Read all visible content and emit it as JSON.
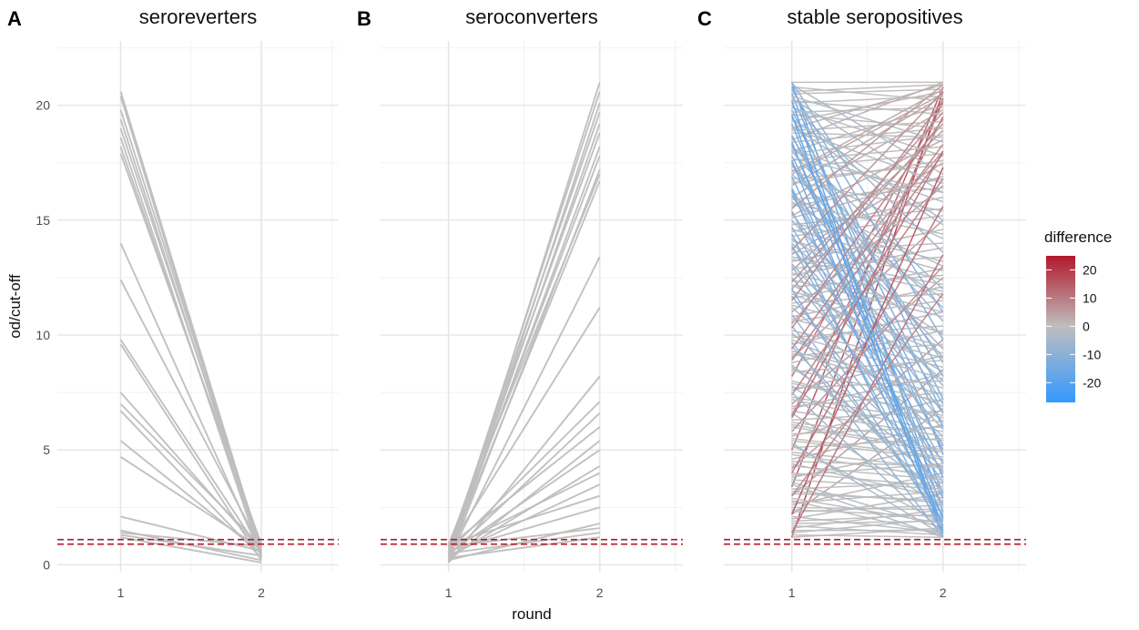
{
  "chart_data": {
    "type": "line",
    "y_axis_title": "od/cut-off",
    "x_axis_title": "round",
    "x_ticks": [
      "1",
      "2"
    ],
    "y_ticks": [
      0,
      5,
      10,
      15,
      20
    ],
    "ylim": [
      -0.3,
      22.8
    ],
    "xlim": [
      0.55,
      2.55
    ],
    "reference_lines_y": [
      0.9,
      1.1
    ],
    "reference_line_color": "#b2182b",
    "neutral_line_color": "#bebebe",
    "grid": true,
    "legend": {
      "title": "difference",
      "ticks": [
        20,
        10,
        0,
        -10,
        -20
      ],
      "range": [
        -27,
        25
      ],
      "colors": {
        "low": "#3399ff",
        "mid": "#bebebe",
        "high": "#b2182b"
      },
      "placement": "right"
    },
    "panels": [
      {
        "tag": "A",
        "title": "seroreverters",
        "colored": false,
        "pairs": [
          [
            20.6,
            0.6
          ],
          [
            20.4,
            0.4
          ],
          [
            19.8,
            0.7
          ],
          [
            19.4,
            0.5
          ],
          [
            19.0,
            0.8
          ],
          [
            18.6,
            0.3
          ],
          [
            18.2,
            0.6
          ],
          [
            17.9,
            0.9
          ],
          [
            14.0,
            0.4
          ],
          [
            12.4,
            0.7
          ],
          [
            9.8,
            0.5
          ],
          [
            9.6,
            0.2
          ],
          [
            7.5,
            0.6
          ],
          [
            7.0,
            0.8
          ],
          [
            6.7,
            0.3
          ],
          [
            5.4,
            0.5
          ],
          [
            4.7,
            0.7
          ],
          [
            2.1,
            0.6
          ],
          [
            1.5,
            0.2
          ],
          [
            1.4,
            0.8
          ],
          [
            1.3,
            0.4
          ],
          [
            1.2,
            0.1
          ]
        ]
      },
      {
        "tag": "B",
        "title": "seroconverters",
        "colored": false,
        "pairs": [
          [
            0.2,
            21.0
          ],
          [
            0.5,
            20.6
          ],
          [
            0.1,
            20.1
          ],
          [
            0.7,
            19.7
          ],
          [
            0.3,
            19.2
          ],
          [
            0.8,
            18.8
          ],
          [
            0.4,
            18.2
          ],
          [
            0.6,
            17.8
          ],
          [
            0.2,
            17.2
          ],
          [
            0.9,
            17.0
          ],
          [
            0.5,
            16.7
          ],
          [
            0.3,
            13.4
          ],
          [
            0.7,
            11.2
          ],
          [
            0.1,
            8.2
          ],
          [
            0.6,
            7.1
          ],
          [
            0.4,
            6.6
          ],
          [
            0.8,
            6.0
          ],
          [
            0.2,
            5.4
          ],
          [
            0.5,
            5.0
          ],
          [
            0.3,
            4.3
          ],
          [
            0.7,
            4.0
          ],
          [
            0.4,
            3.5
          ],
          [
            0.9,
            3.0
          ],
          [
            0.6,
            2.5
          ],
          [
            0.2,
            1.8
          ],
          [
            0.8,
            1.6
          ],
          [
            0.5,
            1.4
          ],
          [
            0.3,
            1.2
          ]
        ]
      },
      {
        "tag": "C",
        "title": "stable seropositives",
        "colored": true,
        "pairs": [
          [
            1.2,
            20.6
          ],
          [
            3.4,
            20.3
          ],
          [
            5.0,
            20.8
          ],
          [
            6.5,
            19.5
          ],
          [
            8.2,
            20.1
          ],
          [
            10.5,
            18.0
          ],
          [
            12.0,
            19.2
          ],
          [
            13.5,
            17.5
          ],
          [
            16.0,
            19.8
          ],
          [
            14.5,
            16.0
          ],
          [
            15.2,
            18.5
          ],
          [
            17.0,
            20.5
          ],
          [
            18.0,
            20.0
          ],
          [
            19.0,
            20.9
          ],
          [
            20.5,
            20.7
          ],
          [
            21.0,
            21.0
          ],
          [
            20.8,
            20.2
          ],
          [
            20.2,
            19.6
          ],
          [
            19.6,
            19.0
          ],
          [
            18.8,
            18.6
          ],
          [
            17.6,
            18.2
          ],
          [
            16.8,
            17.4
          ],
          [
            15.6,
            16.8
          ],
          [
            14.8,
            15.5
          ],
          [
            13.2,
            14.6
          ],
          [
            12.6,
            13.8
          ],
          [
            11.6,
            12.9
          ],
          [
            10.8,
            12.1
          ],
          [
            9.6,
            11.0
          ],
          [
            8.8,
            10.2
          ],
          [
            7.6,
            9.1
          ],
          [
            6.8,
            8.3
          ],
          [
            5.6,
            7.2
          ],
          [
            4.6,
            6.1
          ],
          [
            3.8,
            5.2
          ],
          [
            2.6,
            4.0
          ],
          [
            2.0,
            3.1
          ],
          [
            1.6,
            2.4
          ],
          [
            1.4,
            2.0
          ],
          [
            11.0,
            16.5
          ],
          [
            9.0,
            15.0
          ],
          [
            7.0,
            12.5
          ],
          [
            4.2,
            9.8
          ],
          [
            3.0,
            8.5
          ],
          [
            2.2,
            6.8
          ],
          [
            16.5,
            20.4
          ],
          [
            12.8,
            18.9
          ],
          [
            18.5,
            21.0
          ],
          [
            21.0,
            2.3
          ],
          [
            20.5,
            4.8
          ],
          [
            19.8,
            6.6
          ],
          [
            19.2,
            3.1
          ],
          [
            20.8,
            7.2
          ],
          [
            18.6,
            8.8
          ],
          [
            17.8,
            5.0
          ],
          [
            17.0,
            11.2
          ],
          [
            16.2,
            9.4
          ],
          [
            15.4,
            2.6
          ],
          [
            14.6,
            12.8
          ],
          [
            13.8,
            6.2
          ],
          [
            20.0,
            13.6
          ],
          [
            19.4,
            15.0
          ],
          [
            18.2,
            12.0
          ],
          [
            17.2,
            14.2
          ],
          [
            16.4,
            4.4
          ],
          [
            15.0,
            7.8
          ],
          [
            14.2,
            10.0
          ],
          [
            13.0,
            3.6
          ],
          [
            12.2,
            8.4
          ],
          [
            11.2,
            5.6
          ],
          [
            10.4,
            2.2
          ],
          [
            9.8,
            6.9
          ],
          [
            8.6,
            4.1
          ],
          [
            7.8,
            3.0
          ],
          [
            6.6,
            2.5
          ],
          [
            6.0,
            4.9
          ],
          [
            5.2,
            1.8
          ],
          [
            4.4,
            2.9
          ],
          [
            3.6,
            1.6
          ],
          [
            2.8,
            1.3
          ],
          [
            20.9,
            17.0
          ],
          [
            20.3,
            16.2
          ],
          [
            19.1,
            14.8
          ],
          [
            18.0,
            10.6
          ],
          [
            17.4,
            9.0
          ],
          [
            16.0,
            13.0
          ],
          [
            15.8,
            11.6
          ],
          [
            14.0,
            8.0
          ],
          [
            13.4,
            12.2
          ],
          [
            12.4,
            10.8
          ],
          [
            11.8,
            9.2
          ],
          [
            10.2,
            8.6
          ],
          [
            9.2,
            7.4
          ],
          [
            8.0,
            6.4
          ],
          [
            7.2,
            5.8
          ],
          [
            6.2,
            5.4
          ],
          [
            5.4,
            4.6
          ],
          [
            4.8,
            3.8
          ],
          [
            4.0,
            3.4
          ],
          [
            3.2,
            2.7
          ],
          [
            2.4,
            2.1
          ],
          [
            1.8,
            1.9
          ],
          [
            1.5,
            1.5
          ],
          [
            1.3,
            1.2
          ],
          [
            1.2,
            1.6
          ],
          [
            1.7,
            1.3
          ],
          [
            2.1,
            1.4
          ],
          [
            20.6,
            20.9
          ],
          [
            20.1,
            20.4
          ],
          [
            19.7,
            19.9
          ],
          [
            19.3,
            20.6
          ],
          [
            18.9,
            19.3
          ],
          [
            18.4,
            19.0
          ],
          [
            17.9,
            18.7
          ],
          [
            17.3,
            17.9
          ],
          [
            16.6,
            17.6
          ],
          [
            15.9,
            16.4
          ],
          [
            15.1,
            16.9
          ],
          [
            14.3,
            15.2
          ],
          [
            13.6,
            14.0
          ],
          [
            12.9,
            13.4
          ],
          [
            12.1,
            12.6
          ],
          [
            11.4,
            11.8
          ],
          [
            10.6,
            11.5
          ],
          [
            9.9,
            10.4
          ],
          [
            9.1,
            9.6
          ],
          [
            8.4,
            8.9
          ],
          [
            7.7,
            8.0
          ],
          [
            6.9,
            7.5
          ],
          [
            6.3,
            6.7
          ],
          [
            5.7,
            6.0
          ],
          [
            5.1,
            5.5
          ],
          [
            4.5,
            4.3
          ],
          [
            3.9,
            4.4
          ],
          [
            3.3,
            3.6
          ],
          [
            2.7,
            3.2
          ],
          [
            2.3,
            2.6
          ],
          [
            1.9,
            2.2
          ],
          [
            21.0,
            11.0
          ],
          [
            20.7,
            9.8
          ],
          [
            19.5,
            8.2
          ],
          [
            18.7,
            6.0
          ],
          [
            18.3,
            3.8
          ],
          [
            17.5,
            7.0
          ],
          [
            16.9,
            2.9
          ],
          [
            16.1,
            5.2
          ],
          [
            15.3,
            6.6
          ],
          [
            14.7,
            4.0
          ],
          [
            13.9,
            2.1
          ],
          [
            13.1,
            5.9
          ],
          [
            12.5,
            4.5
          ],
          [
            11.7,
            3.2
          ],
          [
            10.9,
            1.9
          ],
          [
            10.1,
            4.2
          ],
          [
            9.5,
            2.7
          ],
          [
            8.7,
            3.5
          ],
          [
            20.4,
            18.4
          ],
          [
            19.9,
            17.8
          ],
          [
            19.0,
            16.6
          ],
          [
            18.1,
            15.8
          ],
          [
            17.7,
            16.2
          ],
          [
            16.7,
            15.4
          ],
          [
            15.7,
            14.4
          ],
          [
            14.9,
            13.2
          ],
          [
            14.1,
            12.4
          ],
          [
            13.3,
            11.9
          ],
          [
            12.7,
            11.0
          ],
          [
            11.9,
            10.1
          ],
          [
            11.3,
            9.5
          ],
          [
            10.7,
            9.0
          ],
          [
            10.0,
            8.1
          ],
          [
            9.3,
            7.7
          ],
          [
            8.5,
            7.1
          ],
          [
            7.9,
            6.5
          ],
          [
            7.3,
            6.2
          ],
          [
            6.7,
            5.6
          ],
          [
            6.1,
            5.0
          ],
          [
            5.5,
            4.7
          ],
          [
            4.9,
            4.2
          ],
          [
            4.3,
            3.7
          ],
          [
            3.7,
            3.3
          ],
          [
            3.1,
            2.8
          ],
          [
            2.5,
            2.4
          ],
          [
            1.4,
            13.5
          ],
          [
            2.2,
            17.3
          ],
          [
            3.0,
            11.8
          ],
          [
            4.0,
            15.6
          ],
          [
            5.8,
            13.0
          ],
          [
            7.4,
            16.8
          ],
          [
            8.9,
            17.9
          ],
          [
            10.3,
            19.4
          ],
          [
            11.5,
            20.2
          ],
          [
            13.7,
            20.6
          ],
          [
            15.5,
            20.9
          ],
          [
            17.1,
            20.7
          ],
          [
            6.4,
            18.0
          ],
          [
            9.4,
            18.3
          ],
          [
            12.3,
            19.7
          ],
          [
            20.2,
            1.4
          ],
          [
            19.6,
            1.2
          ],
          [
            18.4,
            2.0
          ],
          [
            17.6,
            1.7
          ],
          [
            16.3,
            1.5
          ],
          [
            14.4,
            1.3
          ],
          [
            12.0,
            1.6
          ],
          [
            9.7,
            1.2
          ],
          [
            7.5,
            1.4
          ],
          [
            5.3,
            1.3
          ],
          [
            3.5,
            1.2
          ],
          [
            2.9,
            1.8
          ]
        ]
      }
    ]
  }
}
